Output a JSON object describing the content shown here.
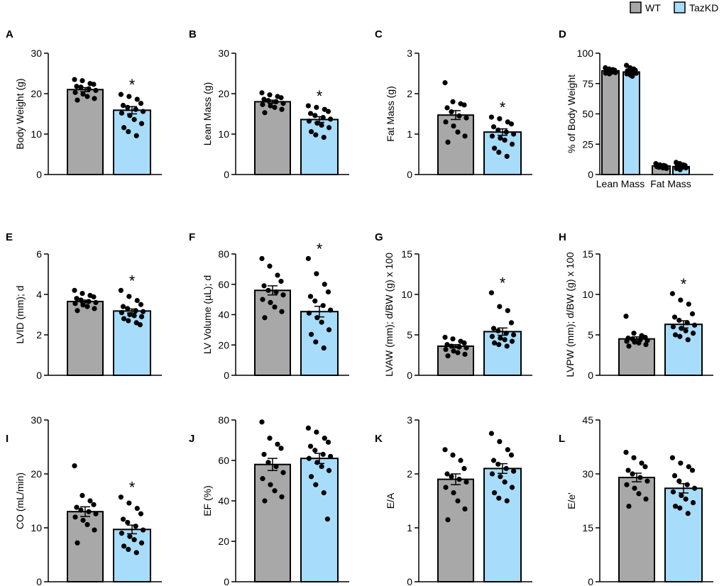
{
  "colors": {
    "wt": "#a8a8a8",
    "tazkd": "#a8dcfb",
    "axis": "#000000",
    "dot": "#000000"
  },
  "legend": [
    {
      "key": "wt",
      "label": "WT"
    },
    {
      "key": "tazkd",
      "label": "TazKD"
    }
  ],
  "chart_data": [
    {
      "type": "bar",
      "panel": "A",
      "ylabel": "Body Weight (g)",
      "ylim": [
        0,
        30
      ],
      "yticks": [
        0,
        10,
        20,
        30
      ],
      "categories": [
        "WT",
        "TazKD"
      ],
      "values": [
        21.0,
        15.9
      ],
      "sem": [
        0.5,
        0.9
      ],
      "significant": [
        false,
        true
      ],
      "points": [
        [
          23.5,
          23.2,
          22.5,
          22.3,
          21.8,
          21.6,
          21.2,
          20.8,
          20.3,
          19.9,
          19.3,
          18.8,
          18.4
        ],
        [
          19.8,
          19.3,
          18.6,
          17.6,
          17.1,
          16.6,
          16.1,
          15.6,
          15.2,
          14.6,
          13.6,
          12.6,
          11.6,
          10.6,
          9.6
        ]
      ]
    },
    {
      "type": "bar",
      "panel": "B",
      "ylabel": "Lean Mass (g)",
      "ylim": [
        0,
        30
      ],
      "yticks": [
        0,
        10,
        20,
        30
      ],
      "categories": [
        "WT",
        "TazKD"
      ],
      "values": [
        18.0,
        13.6
      ],
      "sem": [
        0.4,
        0.7
      ],
      "significant": [
        false,
        true
      ],
      "points": [
        [
          20.2,
          19.7,
          19.3,
          19.0,
          18.6,
          18.3,
          18.0,
          17.6,
          17.3,
          17.0,
          16.6,
          16.1,
          15.3
        ],
        [
          17.0,
          16.6,
          16.1,
          15.6,
          15.1,
          14.6,
          14.1,
          13.7,
          13.2,
          12.7,
          12.2,
          11.6,
          10.6,
          9.8,
          9.2
        ]
      ]
    },
    {
      "type": "bar",
      "panel": "C",
      "ylabel": "Fat Mass (g)",
      "ylim": [
        0,
        3
      ],
      "yticks": [
        0,
        1,
        2,
        3
      ],
      "categories": [
        "WT",
        "TazKD"
      ],
      "values": [
        1.47,
        1.05
      ],
      "sem": [
        0.11,
        0.08
      ],
      "significant": [
        false,
        true
      ],
      "points": [
        [
          2.27,
          1.8,
          1.75,
          1.72,
          1.65,
          1.55,
          1.45,
          1.4,
          1.3,
          1.2,
          1.05,
          0.95,
          0.8
        ],
        [
          1.42,
          1.38,
          1.3,
          1.25,
          1.18,
          1.1,
          1.05,
          1.0,
          0.95,
          0.9,
          0.85,
          0.75,
          0.65,
          0.55,
          0.45
        ]
      ]
    },
    {
      "type": "bar",
      "panel": "D",
      "ylabel": "% of Body Weight",
      "ylim": [
        0,
        100
      ],
      "yticks": [
        0,
        25,
        50,
        75,
        100
      ],
      "categories": [
        "Lean Mass",
        "Fat Mass"
      ],
      "series_names": [
        "WT",
        "TazKD"
      ],
      "values": [
        [
          85.5,
          84.5
        ],
        [
          7.0,
          6.5
        ]
      ],
      "sem": [
        [
          0.8,
          0.9
        ],
        [
          0.5,
          0.6
        ]
      ],
      "points": [
        [
          [
            88,
            87,
            86.5,
            86,
            85.5,
            85,
            84.5,
            84,
            83.5,
            83
          ],
          [
            90,
            88,
            87,
            86,
            85.5,
            85,
            84,
            83.5,
            83,
            82,
            81
          ]
        ],
        [
          [
            9,
            8,
            7.5,
            7,
            6.5,
            6,
            5.5,
            5
          ],
          [
            10,
            9,
            8,
            7.5,
            7,
            6.5,
            6,
            5.5,
            5,
            4
          ]
        ]
      ]
    },
    {
      "type": "bar",
      "panel": "E",
      "ylabel": "LVID (mm); d",
      "ylim": [
        0,
        6
      ],
      "yticks": [
        0,
        2,
        4,
        6
      ],
      "categories": [
        "WT",
        "TazKD"
      ],
      "values": [
        3.65,
        3.18
      ],
      "sem": [
        0.07,
        0.1
      ],
      "significant": [
        false,
        true
      ],
      "points": [
        [
          4.2,
          4.05,
          3.95,
          3.88,
          3.8,
          3.72,
          3.65,
          3.6,
          3.55,
          3.48,
          3.4,
          3.3,
          3.2
        ],
        [
          4.2,
          3.9,
          3.7,
          3.5,
          3.4,
          3.3,
          3.2,
          3.15,
          3.1,
          3.0,
          2.95,
          2.9,
          2.8,
          2.7,
          2.6,
          2.5
        ]
      ]
    },
    {
      "type": "bar",
      "panel": "F",
      "ylabel": "LV Volume (µL); d",
      "ylim": [
        0,
        80
      ],
      "yticks": [
        0,
        20,
        40,
        60,
        80
      ],
      "categories": [
        "WT",
        "TazKD"
      ],
      "values": [
        56,
        42
      ],
      "sem": [
        3.0,
        3.5
      ],
      "significant": [
        false,
        true
      ],
      "points": [
        [
          77,
          72,
          66,
          62,
          59,
          56,
          55,
          53,
          50,
          48,
          45,
          42,
          38
        ],
        [
          77,
          67,
          60,
          55,
          52,
          49,
          46,
          43,
          41,
          38,
          35,
          30,
          27,
          22,
          18
        ]
      ]
    },
    {
      "type": "bar",
      "panel": "G",
      "ylabel": "LVAW (mm); d/BW (g) x 100",
      "ylim": [
        0,
        15
      ],
      "yticks": [
        0,
        5,
        10,
        15
      ],
      "categories": [
        "WT",
        "TazKD"
      ],
      "values": [
        3.6,
        5.4
      ],
      "sem": [
        0.2,
        0.45
      ],
      "significant": [
        false,
        true
      ],
      "points": [
        [
          4.7,
          4.5,
          4.2,
          4.0,
          3.8,
          3.6,
          3.5,
          3.4,
          3.2,
          3.0,
          2.8,
          2.6,
          2.4
        ],
        [
          10.2,
          8.5,
          8.0,
          6.5,
          5.8,
          5.5,
          5.2,
          5.0,
          4.8,
          4.6,
          4.4,
          4.2,
          4.0,
          3.8,
          3.6
        ]
      ]
    },
    {
      "type": "bar",
      "panel": "H",
      "ylabel": "LVPW (mm); d/BW (g) x 100",
      "ylim": [
        0,
        15
      ],
      "yticks": [
        0,
        5,
        10,
        15
      ],
      "categories": [
        "WT",
        "TazKD"
      ],
      "values": [
        4.5,
        6.3
      ],
      "sem": [
        0.25,
        0.45
      ],
      "significant": [
        false,
        true
      ],
      "points": [
        [
          7.3,
          5.2,
          4.9,
          4.7,
          4.6,
          4.5,
          4.4,
          4.3,
          4.2,
          4.1,
          4.0,
          3.8,
          3.6
        ],
        [
          10.1,
          9.3,
          8.8,
          7.6,
          7.2,
          6.8,
          6.5,
          6.2,
          6.0,
          5.8,
          5.5,
          5.2,
          5.0,
          4.8,
          4.4
        ]
      ]
    },
    {
      "type": "bar",
      "panel": "I",
      "ylabel": "CO (mL/min)",
      "ylim": [
        0,
        30
      ],
      "yticks": [
        0,
        10,
        20,
        30
      ],
      "categories": [
        "WT",
        "TazKD"
      ],
      "values": [
        13.0,
        9.7
      ],
      "sem": [
        0.9,
        0.8
      ],
      "significant": [
        false,
        true
      ],
      "points": [
        [
          21.5,
          16.0,
          15.0,
          14.3,
          13.8,
          13.3,
          13.0,
          12.6,
          12.0,
          11.4,
          10.6,
          9.6,
          7.2
        ],
        [
          15.7,
          14.6,
          13.6,
          12.6,
          11.6,
          11.0,
          10.3,
          9.6,
          9.0,
          8.4,
          7.8,
          7.2,
          6.6,
          6.0,
          5.4
        ]
      ]
    },
    {
      "type": "bar",
      "panel": "J",
      "ylabel": "EF (%)",
      "ylim": [
        0,
        80
      ],
      "yticks": [
        0,
        20,
        40,
        60,
        80
      ],
      "categories": [
        "WT",
        "TazKD"
      ],
      "values": [
        58,
        61
      ],
      "sem": [
        3.0,
        2.5
      ],
      "significant": [
        false,
        false
      ],
      "points": [
        [
          79,
          71,
          68,
          66,
          63,
          59,
          57,
          54,
          51,
          48,
          45,
          42,
          40
        ],
        [
          76,
          74,
          71,
          69,
          67,
          65,
          63,
          62,
          61,
          59,
          57,
          55,
          52,
          48,
          44,
          31
        ]
      ]
    },
    {
      "type": "bar",
      "panel": "K",
      "ylabel": "E/A",
      "ylim": [
        0,
        3
      ],
      "yticks": [
        0,
        1,
        2,
        3
      ],
      "categories": [
        "WT",
        "TazKD"
      ],
      "values": [
        1.9,
        2.1
      ],
      "sem": [
        0.1,
        0.09
      ],
      "significant": [
        false,
        false
      ],
      "points": [
        [
          2.45,
          2.35,
          2.25,
          2.1,
          2.0,
          1.95,
          1.9,
          1.85,
          1.75,
          1.65,
          1.5,
          1.35,
          1.15
        ],
        [
          2.75,
          2.6,
          2.45,
          2.35,
          2.25,
          2.18,
          2.1,
          2.05,
          2.0,
          1.95,
          1.85,
          1.75,
          1.65,
          1.55,
          1.5
        ]
      ]
    },
    {
      "type": "bar",
      "panel": "L",
      "ylabel": "E/e'",
      "ylim": [
        0,
        45
      ],
      "yticks": [
        0,
        15,
        30,
        45
      ],
      "categories": [
        "WT",
        "TazKD"
      ],
      "values": [
        29,
        26
      ],
      "sem": [
        1.2,
        1.3
      ],
      "significant": [
        false,
        false
      ],
      "points": [
        [
          36,
          34.5,
          33,
          32,
          31,
          30,
          29,
          28,
          27,
          26,
          24.5,
          23,
          21
        ],
        [
          34.5,
          33,
          32,
          31,
          29.5,
          28,
          27,
          26,
          25,
          24,
          23,
          22,
          21,
          20.5,
          19
        ]
      ]
    }
  ]
}
